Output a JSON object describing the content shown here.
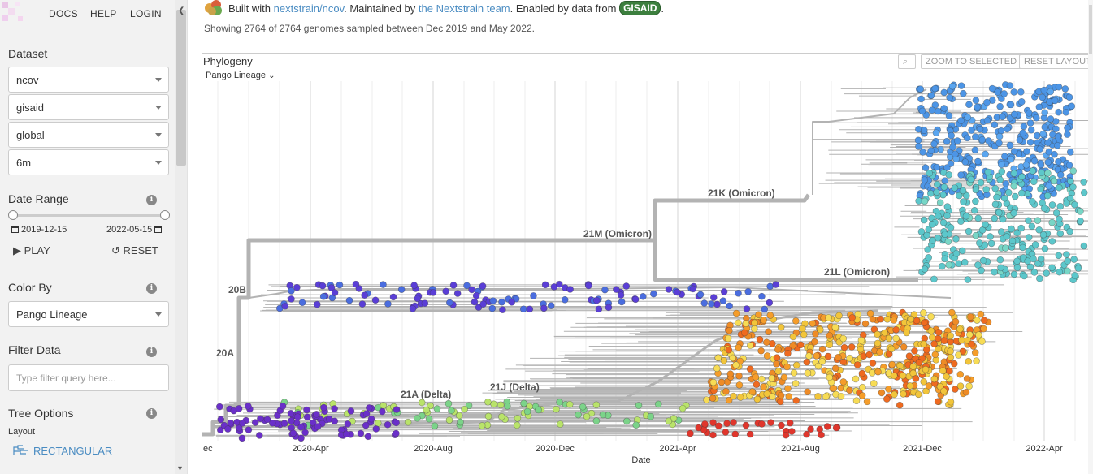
{
  "nav": {
    "docs": "DOCS",
    "help": "HELP",
    "login": "LOGIN"
  },
  "sidebar": {
    "dataset_title": "Dataset",
    "dataset_selects": [
      "ncov",
      "gisaid",
      "global",
      "6m"
    ],
    "date_range_title": "Date Range",
    "date_start": "2019-12-15",
    "date_end": "2022-05-15",
    "date_slider_fraction": [
      0,
      1
    ],
    "play_label": "PLAY",
    "reset_label": "RESET",
    "color_by_title": "Color By",
    "color_by_value": "Pango Lineage",
    "filter_title": "Filter Data",
    "filter_placeholder": "Type filter query here...",
    "tree_options_title": "Tree Options",
    "layout_label": "Layout",
    "layout_value": "RECTANGULAR"
  },
  "header": {
    "built_with": "Built with",
    "repo_link": "nextstrain/ncov",
    "maintained_by": ". Maintained by",
    "team_link": "the Nextstrain team",
    "enabled_by": ". Enabled by data from",
    "gisaid": "GISAID",
    "period": ".",
    "summary": "Showing 2764 of 2764 genomes sampled between Dec 2019 and May 2022."
  },
  "panel": {
    "title": "Phylogeny",
    "branch_label_selector": "Pango Lineage",
    "zoom_to_selected": "ZOOM TO SELECTED",
    "reset_layout": "RESET LAYOUT"
  },
  "tree": {
    "x_axis_label": "Date",
    "x_ticks": [
      "ec",
      "2020-Apr",
      "2020-Aug",
      "2020-Dec",
      "2021-Apr",
      "2021-Aug",
      "2021-Dec",
      "2022-Apr"
    ],
    "clade_labels": [
      "20B",
      "20A",
      "21M (Omicron)",
      "21K (Omicron)",
      "21L (Omicron)",
      "21A (Delta)",
      "21J (Delta)"
    ],
    "colors": {
      "branch": "#b3b3b3",
      "omicron_21K": "#4c95e6",
      "omicron_21L": "#5cc7cb",
      "lineage_20B": "#5a3ed6",
      "early": "#6a2fc9",
      "delta_hot": "#ef6a1f",
      "delta_warm": "#f2c53a",
      "delta_green": "#7bd389",
      "red": "#e0362c",
      "link": "#4a8cc2"
    }
  }
}
